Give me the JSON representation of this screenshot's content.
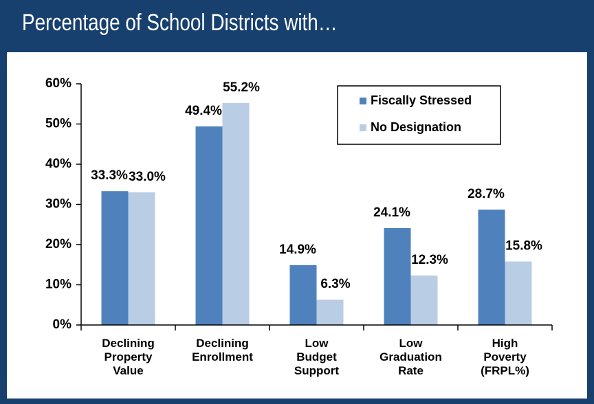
{
  "chart_data": {
    "type": "bar",
    "title": "Percentage of School Districts with…",
    "categories": [
      "Declining\nProperty\nValue",
      "Declining\nEnrollment",
      "Low\nBudget\nSupport",
      "Low\nGraduation\nRate",
      "High\nPoverty\n(FRPL%)"
    ],
    "series": [
      {
        "name": "Fiscally Stressed",
        "color": "#4f81bd",
        "values": [
          33.3,
          49.4,
          14.9,
          24.1,
          28.7
        ],
        "value_labels": [
          "33.3%",
          "49.4%",
          "14.9%",
          "24.1%",
          "28.7%"
        ]
      },
      {
        "name": "No Designation",
        "color": "#b9cde5",
        "values": [
          33.0,
          55.2,
          6.3,
          12.3,
          15.8
        ],
        "value_labels": [
          "33.0%",
          "55.2%",
          "6.3%",
          "12.3%",
          "15.8%"
        ]
      }
    ],
    "ylim": [
      0,
      60
    ],
    "yticks": [
      {
        "value": 0,
        "label": "0%"
      },
      {
        "value": 10,
        "label": "10%"
      },
      {
        "value": 20,
        "label": "20%"
      },
      {
        "value": 30,
        "label": "30%"
      },
      {
        "value": 40,
        "label": "40%"
      },
      {
        "value": 50,
        "label": "50%"
      },
      {
        "value": 60,
        "label": "60%"
      }
    ],
    "grid": false,
    "legend": "top-right"
  }
}
